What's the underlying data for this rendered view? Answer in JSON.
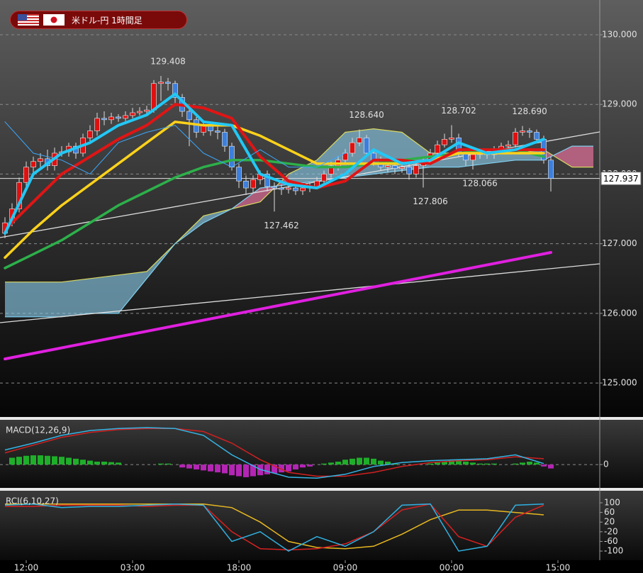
{
  "chart_data": [
    {
      "type": "candlestick",
      "title": "米ドル-円 1時間足",
      "xlim": [
        -0.7,
        83.9
      ],
      "ylim": [
        124.512,
        130.499
      ],
      "yticks": [
        {
          "value": 125,
          "label": "125.000"
        },
        {
          "value": 126,
          "label": "126.000"
        },
        {
          "value": 127,
          "label": "127.000"
        },
        {
          "value": 128,
          "label": "128.000"
        },
        {
          "value": 129,
          "label": "129.000"
        },
        {
          "value": 130,
          "label": "130.000"
        }
      ],
      "grid": true,
      "up_color": "#e01010",
      "down_color": "#3c7fdc",
      "open": [
        127.15,
        127.3,
        127.5,
        127.88,
        128.1,
        128.18,
        128.22,
        128.12,
        128.3,
        128.32,
        128.4,
        128.3,
        128.52,
        128.62,
        128.8,
        128.78,
        128.82,
        128.8,
        128.84,
        128.88,
        128.9,
        128.92,
        129.3,
        129.32,
        129.3,
        129.1,
        128.9,
        128.78,
        128.6,
        128.7,
        128.62,
        128.6,
        128.4,
        128.1,
        127.9,
        127.8,
        127.92,
        128.0,
        127.82,
        127.8,
        127.78,
        127.8,
        127.76,
        127.8,
        127.82,
        127.9,
        128.0,
        128.12,
        128.2,
        128.3,
        128.45,
        128.52,
        128.3,
        128.2,
        128.1,
        128.12,
        128.08,
        128.1,
        128.0,
        128.12,
        128.2,
        128.3,
        128.42,
        128.5,
        128.52,
        128.3,
        128.2,
        128.28,
        128.3,
        128.28,
        128.34,
        128.4,
        128.42,
        128.6,
        128.62,
        128.6,
        128.5,
        128.2
      ],
      "high": [
        127.38,
        127.58,
        127.95,
        128.18,
        128.25,
        128.3,
        128.35,
        128.38,
        128.4,
        128.45,
        128.45,
        128.58,
        128.7,
        128.88,
        128.9,
        128.88,
        128.86,
        128.9,
        128.95,
        128.96,
        128.98,
        129.35,
        129.408,
        129.38,
        129.34,
        129.15,
        128.95,
        128.82,
        128.76,
        128.75,
        128.68,
        128.65,
        128.45,
        128.15,
        127.98,
        127.98,
        128.05,
        128.05,
        127.88,
        127.85,
        127.86,
        127.84,
        127.86,
        127.88,
        127.96,
        128.05,
        128.18,
        128.26,
        128.36,
        128.52,
        128.64,
        128.56,
        128.35,
        128.25,
        128.18,
        128.16,
        128.16,
        128.14,
        128.18,
        128.25,
        128.36,
        128.48,
        128.58,
        128.702,
        128.58,
        128.35,
        128.32,
        128.36,
        128.35,
        128.4,
        128.45,
        128.48,
        128.66,
        128.69,
        128.66,
        128.64,
        128.55,
        128.25
      ],
      "low": [
        127.08,
        127.25,
        127.45,
        127.82,
        128.02,
        128.1,
        128.05,
        128.05,
        128.25,
        128.25,
        128.22,
        128.25,
        128.45,
        128.55,
        128.7,
        128.72,
        128.75,
        128.76,
        128.8,
        128.84,
        128.85,
        128.88,
        129.05,
        129.2,
        129.02,
        128.82,
        128.4,
        128.52,
        128.55,
        128.55,
        128.5,
        128.32,
        128.05,
        127.8,
        127.7,
        127.72,
        127.85,
        127.75,
        127.462,
        127.7,
        127.72,
        127.7,
        127.7,
        127.74,
        127.78,
        127.85,
        127.95,
        128.05,
        128.15,
        128.25,
        128.4,
        128.25,
        128.12,
        128.05,
        128.02,
        128.0,
        128.02,
        127.92,
        127.95,
        127.806,
        128.15,
        128.25,
        128.38,
        128.45,
        128.25,
        128.12,
        128.066,
        128.22,
        128.22,
        128.22,
        128.3,
        128.35,
        128.38,
        128.55,
        128.52,
        128.45,
        128.15,
        127.75
      ],
      "close": [
        127.3,
        127.5,
        127.88,
        128.1,
        128.18,
        128.22,
        128.12,
        128.3,
        128.32,
        128.4,
        128.3,
        128.52,
        128.62,
        128.8,
        128.78,
        128.82,
        128.8,
        128.84,
        128.88,
        128.9,
        128.92,
        129.3,
        129.32,
        129.3,
        129.1,
        128.9,
        128.78,
        128.6,
        128.7,
        128.62,
        128.6,
        128.4,
        128.1,
        127.9,
        127.8,
        127.92,
        128.0,
        127.82,
        127.8,
        127.78,
        127.8,
        127.76,
        127.8,
        127.82,
        127.9,
        128.0,
        128.12,
        128.2,
        128.3,
        128.45,
        128.52,
        128.3,
        128.2,
        128.1,
        128.12,
        128.08,
        128.1,
        128.0,
        128.12,
        128.2,
        128.3,
        128.42,
        128.5,
        128.52,
        128.3,
        128.2,
        128.28,
        128.3,
        128.28,
        128.34,
        128.4,
        128.42,
        128.6,
        128.62,
        128.6,
        128.5,
        128.2,
        127.937
      ],
      "annotations": [
        {
          "value": 129.408,
          "x": 22
        },
        {
          "value": 128.64,
          "label": "128.640",
          "x": 50
        },
        {
          "value": 128.702,
          "x": 63
        },
        {
          "value": 128.69,
          "label": "128.690",
          "x": 73
        },
        {
          "value": 128.066,
          "x": 66
        },
        {
          "value": 127.806,
          "x": 59
        },
        {
          "value": 127.462,
          "x": 38
        }
      ],
      "cloud": {
        "x": [
          0,
          4,
          8,
          12,
          16,
          20,
          24,
          28,
          32,
          36,
          40,
          44,
          48,
          52,
          56,
          60,
          64,
          68,
          72,
          76,
          80,
          83
        ],
        "span_a": [
          126.45,
          126.45,
          126.45,
          126.5,
          126.55,
          126.6,
          127.0,
          127.4,
          127.5,
          127.6,
          128.0,
          128.2,
          128.6,
          128.65,
          128.6,
          128.3,
          128.3,
          128.3,
          128.3,
          128.35,
          128.1,
          128.1
        ],
        "span_b": [
          125.95,
          125.95,
          125.95,
          126.0,
          126.0,
          126.5,
          127.0,
          127.3,
          127.5,
          127.8,
          127.85,
          127.9,
          127.95,
          128.0,
          128.05,
          128.1,
          128.1,
          128.15,
          128.2,
          128.2,
          128.4,
          128.4
        ],
        "color_up": "rgba(140,205,235,0.62)",
        "color_down": "rgba(255,120,170,0.6)",
        "edge_a": "#d8d860",
        "edge_b": "#7fd0f0"
      },
      "overlays": [
        {
          "color": "#2db04a",
          "width": 3.5,
          "x": [
            0,
            4,
            8,
            12,
            16,
            20,
            24,
            28,
            32,
            36,
            40,
            44,
            48,
            52,
            56,
            60,
            64,
            68,
            72,
            76
          ],
          "values": [
            126.65,
            126.85,
            127.05,
            127.3,
            127.55,
            127.75,
            127.95,
            128.1,
            128.2,
            128.2,
            128.15,
            128.1,
            128.1,
            128.15,
            128.2,
            128.25,
            128.3,
            128.35,
            128.35,
            128.25
          ]
        },
        {
          "color": "#ffd21a",
          "width": 3.5,
          "x": [
            0,
            4,
            8,
            12,
            16,
            20,
            24,
            28,
            32,
            36,
            40,
            44,
            48,
            52,
            56,
            60,
            64,
            68,
            72,
            76
          ],
          "values": [
            126.8,
            127.2,
            127.55,
            127.85,
            128.15,
            128.45,
            128.75,
            128.7,
            128.7,
            128.55,
            128.35,
            128.15,
            128.15,
            128.15,
            128.15,
            128.2,
            128.3,
            128.3,
            128.3,
            128.3
          ]
        },
        {
          "color": "#e01515",
          "width": 4,
          "x": [
            0,
            4,
            8,
            12,
            16,
            20,
            24,
            28,
            32,
            36,
            40,
            44,
            48,
            52,
            56,
            60,
            64,
            68,
            72,
            76
          ],
          "values": [
            127.2,
            127.6,
            128.0,
            128.25,
            128.5,
            128.7,
            129.0,
            128.95,
            128.8,
            128.25,
            127.9,
            127.8,
            127.9,
            128.2,
            128.2,
            128.15,
            128.35,
            128.35,
            128.35,
            128.35
          ]
        },
        {
          "color": "#3aa8ff",
          "width": 1,
          "x": [
            0,
            4,
            8,
            12,
            16,
            20,
            24,
            28,
            32,
            36,
            40,
            44,
            48
          ],
          "values": [
            128.75,
            128.3,
            128.2,
            128.0,
            128.45,
            128.6,
            128.7,
            128.3,
            128.1,
            128.35,
            128.1,
            128.1,
            128.3
          ]
        },
        {
          "color": "#22c8f5",
          "width": 4,
          "x": [
            0,
            4,
            8,
            12,
            16,
            20,
            24,
            28,
            32,
            36,
            40,
            44,
            48,
            52,
            56,
            60,
            64,
            68,
            72,
            76
          ],
          "values": [
            127.15,
            128.0,
            128.3,
            128.45,
            128.7,
            128.85,
            129.15,
            128.75,
            128.7,
            128.0,
            127.85,
            127.8,
            128.0,
            128.35,
            128.15,
            128.2,
            128.45,
            128.3,
            128.35,
            128.5
          ]
        },
        {
          "color": "#e020e0",
          "width": 4,
          "x": [
            0,
            77
          ],
          "values": [
            125.346,
            126.874
          ]
        }
      ],
      "trendlines": [
        {
          "color": "#dddddd",
          "x": [
            -0.7,
            83.9
          ],
          "values": [
            127.088,
            128.605
          ]
        },
        {
          "color": "#dddddd",
          "x": [
            -0.7,
            83.9
          ],
          "values": [
            125.866,
            126.711
          ]
        }
      ]
    },
    {
      "type": "macd",
      "title": "MACD(12,26,9)",
      "xlim": [
        -0.7,
        83.9
      ],
      "ylim": [
        -0.24,
        0.46
      ],
      "yticks": [
        0
      ],
      "grid": true,
      "histogram": {
        "up_color": "#1fae2a",
        "down_color": "#b425b4",
        "values": [
          0,
          0.07,
          0.08,
          0.09,
          0.095,
          0.095,
          0.09,
          0.085,
          0.08,
          0.07,
          0.06,
          0.05,
          0.04,
          0.03,
          0.03,
          0.025,
          0.02,
          0,
          0,
          0,
          0,
          0,
          0.01,
          0.01,
          0,
          -0.03,
          -0.04,
          -0.05,
          -0.06,
          -0.07,
          -0.08,
          -0.09,
          -0.11,
          -0.12,
          -0.13,
          -0.12,
          -0.11,
          -0.1,
          -0.09,
          -0.08,
          -0.07,
          -0.05,
          -0.03,
          -0.02,
          0,
          0.01,
          0.02,
          0.03,
          0.05,
          0.06,
          0.07,
          0.07,
          0.06,
          0.04,
          0.03,
          0.01,
          0,
          0,
          0,
          0,
          0.01,
          0.02,
          0.03,
          0.04,
          0.04,
          0.03,
          0.02,
          0.01,
          0.01,
          0.01,
          0,
          0,
          0.01,
          0.02,
          0.03,
          0.02,
          -0.02,
          -0.04
        ]
      },
      "series": [
        {
          "color": "#d02020",
          "x": [
            0,
            4,
            8,
            12,
            16,
            20,
            24,
            28,
            32,
            36,
            40,
            44,
            48,
            52,
            56,
            60,
            64,
            68,
            72,
            76
          ],
          "values": [
            0.12,
            0.2,
            0.28,
            0.33,
            0.36,
            0.37,
            0.37,
            0.34,
            0.22,
            0.05,
            -0.08,
            -0.12,
            -0.12,
            -0.08,
            -0.02,
            0.02,
            0.04,
            0.05,
            0.08,
            0.06
          ]
        },
        {
          "color": "#35b5e5",
          "x": [
            0,
            4,
            8,
            12,
            16,
            20,
            24,
            28,
            32,
            36,
            40,
            44,
            48,
            52,
            56,
            60,
            64,
            68,
            72,
            76
          ],
          "values": [
            0.15,
            0.22,
            0.3,
            0.35,
            0.37,
            0.38,
            0.37,
            0.3,
            0.1,
            -0.05,
            -0.13,
            -0.14,
            -0.1,
            -0.02,
            0.02,
            0.04,
            0.05,
            0.06,
            0.1,
            0.01
          ]
        }
      ]
    },
    {
      "type": "rci",
      "title": "RCI(6,10,27)",
      "xlim": [
        -0.7,
        83.9
      ],
      "ylim": [
        -138,
        150
      ],
      "yticks": [
        100,
        60,
        20,
        -20,
        -60,
        -100
      ],
      "xticks": [
        {
          "value": 3,
          "label": "12:00"
        },
        {
          "value": 18,
          "label": "03:00"
        },
        {
          "value": 33,
          "label": "18:00"
        },
        {
          "value": 48,
          "label": "09:00"
        },
        {
          "value": 63,
          "label": "00:00"
        },
        {
          "value": 78,
          "label": "15:00"
        }
      ],
      "series": [
        {
          "color": "#e8b820",
          "x": [
            0,
            4,
            8,
            12,
            16,
            20,
            24,
            28,
            32,
            36,
            40,
            44,
            48,
            52,
            56,
            60,
            64,
            68,
            72,
            76
          ],
          "values": [
            95,
            95,
            95,
            95,
            95,
            95,
            95,
            95,
            80,
            20,
            -60,
            -85,
            -90,
            -80,
            -30,
            30,
            70,
            70,
            60,
            50
          ]
        },
        {
          "color": "#d82020",
          "x": [
            0,
            4,
            8,
            12,
            16,
            20,
            24,
            28,
            32,
            36,
            40,
            44,
            48,
            52,
            56,
            60,
            64,
            68,
            72,
            76
          ],
          "values": [
            85,
            85,
            90,
            90,
            90,
            85,
            90,
            90,
            -20,
            -90,
            -95,
            -90,
            -70,
            -20,
            70,
            95,
            -40,
            -80,
            40,
            90
          ]
        },
        {
          "color": "#30b0e0",
          "x": [
            0,
            4,
            8,
            12,
            16,
            20,
            24,
            28,
            32,
            36,
            40,
            44,
            48,
            52,
            56,
            60,
            64,
            68,
            72,
            76
          ],
          "values": [
            90,
            95,
            80,
            85,
            85,
            90,
            95,
            90,
            -60,
            -20,
            -100,
            -40,
            -80,
            -20,
            90,
            95,
            -100,
            -80,
            90,
            95
          ]
        }
      ]
    }
  ]
}
